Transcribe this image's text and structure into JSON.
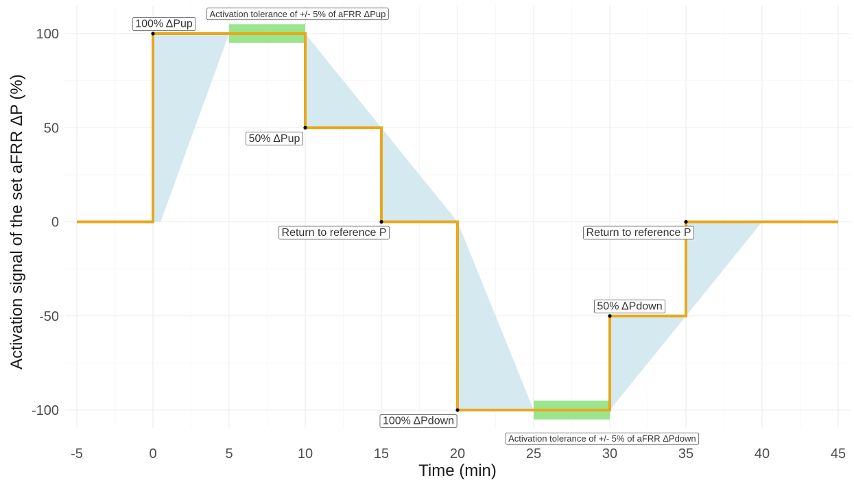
{
  "chart_data": {
    "type": "line",
    "xlabel": "Time (min)",
    "ylabel": "Activation signal of the set aFRR ΔP (%)",
    "xlim": [
      -5,
      45
    ],
    "ylim": [
      -100,
      100
    ],
    "xticks": [
      -5,
      0,
      5,
      10,
      15,
      20,
      25,
      30,
      35,
      40,
      45
    ],
    "yticks": [
      -100,
      -50,
      0,
      50,
      100
    ],
    "grid": true,
    "colors": {
      "signal": "#e8a81c",
      "response_band": "#d5e9f1",
      "tolerance": "#9be58e",
      "grid": "#ebebeb",
      "point": "#000000"
    },
    "series": [
      {
        "values": [
          [
            -5,
            0
          ],
          [
            0,
            0
          ],
          [
            0,
            100
          ],
          [
            10,
            100
          ],
          [
            10,
            50
          ],
          [
            15,
            50
          ],
          [
            15,
            0
          ],
          [
            20,
            0
          ],
          [
            20,
            -100
          ],
          [
            30,
            -100
          ],
          [
            30,
            -50
          ],
          [
            35,
            -50
          ],
          [
            35,
            0
          ],
          [
            45,
            0
          ]
        ]
      }
    ],
    "response_bands": [
      [
        [
          0,
          100
        ],
        [
          5,
          100
        ],
        [
          0.5,
          0
        ],
        [
          0,
          0
        ]
      ],
      [
        [
          10,
          100
        ],
        [
          15,
          50
        ],
        [
          10,
          50
        ]
      ],
      [
        [
          15,
          50
        ],
        [
          20,
          0
        ],
        [
          15,
          0
        ]
      ],
      [
        [
          20,
          0
        ],
        [
          25,
          -100
        ],
        [
          20,
          -100
        ]
      ],
      [
        [
          30,
          -100
        ],
        [
          35,
          -50
        ],
        [
          30,
          -50
        ]
      ],
      [
        [
          35,
          -50
        ],
        [
          40,
          0
        ],
        [
          35,
          0
        ]
      ]
    ],
    "tolerance_bands": [
      {
        "x": [
          5,
          10
        ],
        "y": [
          95,
          105
        ]
      },
      {
        "x": [
          25,
          30
        ],
        "y": [
          -105,
          -95
        ]
      }
    ],
    "points": [
      {
        "x": 0,
        "y": 100,
        "label": "100% ΔPup"
      },
      {
        "x": 10,
        "y": 50,
        "label": "50% ΔPup"
      },
      {
        "x": 15,
        "y": 0,
        "label": "Return to reference P"
      },
      {
        "x": 20,
        "y": -100,
        "label": "100% ΔPdown"
      },
      {
        "x": 30,
        "y": -50,
        "label": "50% ΔPdown"
      },
      {
        "x": 35,
        "y": 0,
        "label": "Return to reference P"
      }
    ],
    "annotations": [
      {
        "x": 9.5,
        "y": 105,
        "text": "Activation tolerance of +/- 5% of aFRR ΔPup"
      },
      {
        "x": 29.5,
        "y": -105,
        "text": "Activation tolerance of +/- 5% of aFRR ΔPdown"
      }
    ]
  }
}
